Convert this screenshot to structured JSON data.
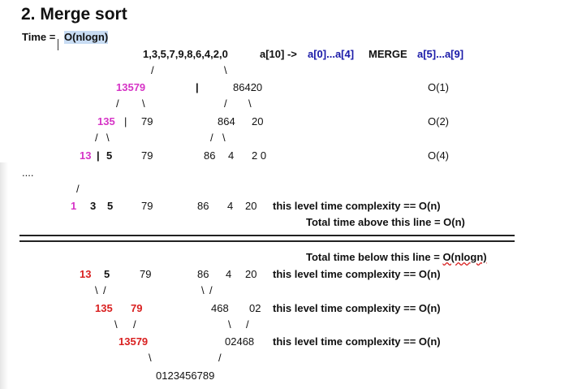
{
  "heading": {
    "title": "2. Merge sort",
    "time_label": "Time =",
    "time_value": "O(nlogn)"
  },
  "top": {
    "input": "1,3,5,7,9,8,6,4,2,0",
    "array_desc": "a[10] ->",
    "left_range": "a[0]...a[4]",
    "merge_word": "MERGE",
    "right_range": "a[5]...a[9]"
  },
  "divide": {
    "l1_left": "13579",
    "l1_bar": "|",
    "l1_right": "86420",
    "l1_cost": "O(1)",
    "l2_left_a": "135",
    "l2_left_bar": "|",
    "l2_left_b": "79",
    "l2_right_a": "864",
    "l2_right_b": "20",
    "l2_cost": "O(2)",
    "l3_a": "13",
    "l3_bar": "|",
    "l3_b": "5",
    "l3_c": "79",
    "l3_d": "86",
    "l3_e": "4",
    "l3_f": "2 0",
    "l3_cost": "O(4)",
    "ellipsis": "....",
    "l4_a": "1",
    "l4_b": "3",
    "l4_c": "5",
    "l4_d": "79",
    "l4_e": "86",
    "l4_f": "4",
    "l4_g": "20",
    "l4_note": "this level time complexity == O(n)",
    "above_total": "Total time above this line = O(n)"
  },
  "separator": "=",
  "merge": {
    "below_total_prefix": "Total time below this line = ",
    "below_total_value": "O(nlogn)",
    "m1_a": "13",
    "m1_b": "5",
    "m1_c": "79",
    "m1_d": "86",
    "m1_e": "4",
    "m1_f": "20",
    "m1_note": "this level time complexity == O(n)",
    "m2_a": "135",
    "m2_b": "79",
    "m2_c": "468",
    "m2_d": "02",
    "m2_note": "this level time complexity == O(n)",
    "m3_a": "13579",
    "m3_b": "02468",
    "m3_note": "this level time complexity == O(n)",
    "result": "0123456789"
  },
  "colors": {
    "pink": "#d633c6",
    "red": "#d92020",
    "blue": "#1a1aa8",
    "highlight": "#c8dcf3"
  }
}
